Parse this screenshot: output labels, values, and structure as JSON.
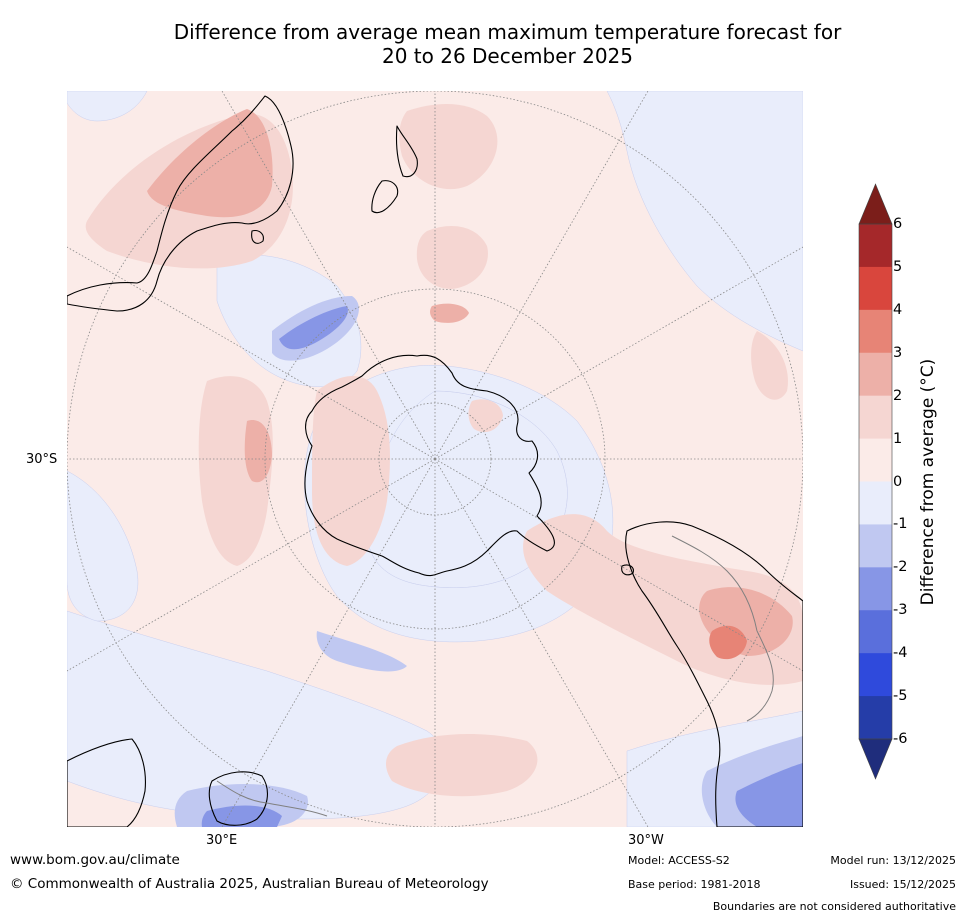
{
  "title": {
    "line1": "Difference from average mean maximum temperature forecast for",
    "line2": "20 to 26 December 2025"
  },
  "map": {
    "projection": "south polar stereographic",
    "lat_label": "30°S",
    "lon_label_left": "30°E",
    "lon_label_right": "30°W",
    "gridline_color": "#888888",
    "coast_color": "#000000",
    "border_color": "#808080"
  },
  "colorbar": {
    "label": "Difference from average (°C)",
    "min": -6,
    "max": 6,
    "ticks": [
      "6",
      "5",
      "4",
      "3",
      "2",
      "1",
      "0",
      "-1",
      "-2",
      "-3",
      "-4",
      "-5",
      "-6"
    ],
    "colors_top_to_bottom": [
      "#A5282A",
      "#D9463D",
      "#E78476",
      "#EDB0A8",
      "#F5D6D2",
      "#FBEBE8",
      "#E9EDFB",
      "#C0C8F1",
      "#8796E6",
      "#5A6FDC",
      "#2F4ADC",
      "#253DA8"
    ],
    "over_color": "#7B1E1A",
    "under_color": "#1F2D7C"
  },
  "footer": {
    "website": "www.bom.gov.au/climate",
    "copyright": "© Commonwealth of Australia 2025, Australian Bureau of Meteorology",
    "model": "Model: ACCESS-S2",
    "base_period": "Base period: 1981-2018",
    "model_run": "Model run: 13/12/2025",
    "issued": "Issued: 15/12/2025",
    "disclaimer": "Boundaries are not considered authoritative"
  }
}
